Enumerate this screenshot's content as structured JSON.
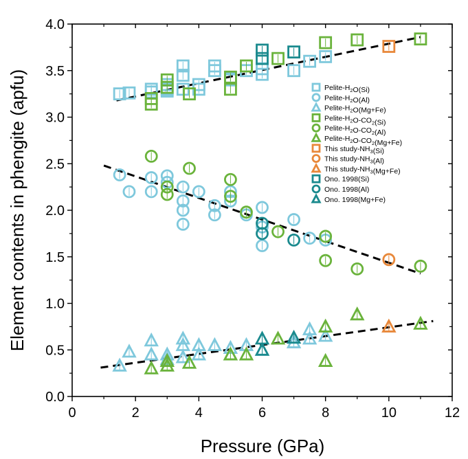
{
  "chart_data": {
    "type": "scatter",
    "xlabel": "Pressure (GPa)",
    "ylabel": "Element contents in phengite (apfu)",
    "xlim": [
      0,
      12
    ],
    "ylim": [
      0.0,
      4.0
    ],
    "x_ticks": [
      "0",
      "2",
      "4",
      "6",
      "8",
      "10",
      "12"
    ],
    "y_ticks": [
      "0.0",
      "0.5",
      "1.0",
      "1.5",
      "2.0",
      "2.5",
      "3.0",
      "3.5",
      "4.0"
    ],
    "colors": {
      "pelite_h2o": "#7ec8dc",
      "pelite_h2o_co2": "#6ab33b",
      "this_study": "#e8883a",
      "ono": "#1a8a8e",
      "trend": "#000000"
    },
    "legend": [
      {
        "base": "Pelite-H",
        "sub": "2",
        "tail": "O(Si)",
        "marker": "square",
        "color": "#7ec8dc"
      },
      {
        "base": "Pelite-H",
        "sub": "2",
        "tail": "O(Al)",
        "marker": "circle",
        "color": "#7ec8dc"
      },
      {
        "base": "Pelite-H",
        "sub": "2",
        "tail": "O(Mg+Fe)",
        "marker": "triangle",
        "color": "#7ec8dc"
      },
      {
        "base": "Pelite-H",
        "sub": "2",
        "tail": "O-CO",
        "sub2": "2",
        "tail2": "(Si)",
        "marker": "square",
        "color": "#6ab33b"
      },
      {
        "base": "Pelite-H",
        "sub": "2",
        "tail": "O-CO",
        "sub2": "2",
        "tail2": "(Al)",
        "marker": "circle",
        "color": "#6ab33b"
      },
      {
        "base": "Pelite-H",
        "sub": "2",
        "tail": "O-CO",
        "sub2": "2",
        "tail2": "(Mg+Fe)",
        "marker": "triangle",
        "color": "#6ab33b"
      },
      {
        "base": "This study-NH",
        "sub": "3",
        "tail": "(Si)",
        "marker": "square",
        "color": "#e8883a"
      },
      {
        "base": "This study-NH",
        "sub": "3",
        "tail": "(Al)",
        "marker": "circle",
        "color": "#e8883a"
      },
      {
        "base": "This study-NH",
        "sub": "3",
        "tail": "(Mg+Fe)",
        "marker": "triangle",
        "color": "#e8883a"
      },
      {
        "base": "Ono. 1998(Si)",
        "marker": "square",
        "color": "#1a8a8e"
      },
      {
        "base": "Ono. 1998(Al)",
        "marker": "circle",
        "color": "#1a8a8e"
      },
      {
        "base": "Ono. 1998(Mg+Fe)",
        "marker": "triangle",
        "color": "#1a8a8e"
      }
    ],
    "trend_lines": [
      {
        "name": "Si trend",
        "x": [
          1.4,
          11.0
        ],
        "y": [
          3.18,
          3.86
        ]
      },
      {
        "name": "Al trend",
        "x": [
          1.0,
          11.0
        ],
        "y": [
          2.48,
          1.32
        ]
      },
      {
        "name": "Mg+Fe trend",
        "x": [
          0.9,
          11.4
        ],
        "y": [
          0.31,
          0.81
        ]
      }
    ],
    "series": [
      {
        "name": "Pelite-H2O(Si)",
        "marker": "square",
        "color": "#7ec8dc",
        "x": [
          1.5,
          1.8,
          2.5,
          2.5,
          3.0,
          3.0,
          3.0,
          3.5,
          3.5,
          3.5,
          4.0,
          4.0,
          4.5,
          4.5,
          5.0,
          5.0,
          5.5,
          6.0,
          6.0,
          7.0,
          7.5,
          8.0
        ],
        "y": [
          3.25,
          3.26,
          3.27,
          3.3,
          3.3,
          3.35,
          3.28,
          3.55,
          3.45,
          3.3,
          3.35,
          3.3,
          3.5,
          3.55,
          3.42,
          3.4,
          3.5,
          3.52,
          3.46,
          3.5,
          3.6,
          3.65
        ]
      },
      {
        "name": "Pelite-H2O(Al)",
        "marker": "circle",
        "color": "#7ec8dc",
        "x": [
          1.5,
          1.8,
          2.5,
          2.5,
          3.0,
          3.0,
          3.5,
          3.5,
          3.5,
          3.5,
          4.0,
          4.5,
          4.5,
          5.0,
          5.0,
          5.5,
          6.0,
          6.0,
          6.0,
          7.0,
          7.5,
          8.0
        ],
        "y": [
          2.38,
          2.2,
          2.35,
          2.2,
          2.37,
          2.3,
          2.25,
          2.1,
          2.0,
          1.85,
          2.2,
          2.05,
          1.95,
          2.2,
          2.1,
          1.95,
          2.03,
          1.82,
          1.62,
          1.9,
          1.7,
          1.68
        ]
      },
      {
        "name": "Pelite-H2O(Mg+Fe)",
        "marker": "triangle",
        "color": "#7ec8dc",
        "x": [
          1.5,
          1.8,
          2.5,
          2.5,
          3.0,
          3.0,
          3.5,
          3.5,
          3.5,
          4.0,
          4.0,
          4.5,
          5.0,
          5.0,
          5.5,
          6.0,
          7.0,
          7.5,
          7.5,
          8.0
        ],
        "y": [
          0.33,
          0.48,
          0.6,
          0.45,
          0.45,
          0.4,
          0.62,
          0.55,
          0.42,
          0.45,
          0.55,
          0.55,
          0.45,
          0.52,
          0.55,
          0.5,
          0.58,
          0.72,
          0.62,
          0.65
        ]
      },
      {
        "name": "Pelite-H2O-CO2(Si)",
        "marker": "square",
        "color": "#6ab33b",
        "x": [
          2.5,
          2.5,
          3.0,
          3.0,
          3.7,
          5.0,
          5.0,
          5.5,
          6.5,
          8.0,
          9.0,
          11.0
        ],
        "y": [
          3.14,
          3.2,
          3.4,
          3.32,
          3.25,
          3.43,
          3.3,
          3.55,
          3.63,
          3.8,
          3.83,
          3.84
        ]
      },
      {
        "name": "Pelite-H2O-CO2(Al)",
        "marker": "circle",
        "color": "#6ab33b",
        "x": [
          2.5,
          3.0,
          3.0,
          3.7,
          5.0,
          5.0,
          5.5,
          6.5,
          8.0,
          8.0,
          9.0,
          11.0
        ],
        "y": [
          2.58,
          2.25,
          2.17,
          2.45,
          2.33,
          2.15,
          1.98,
          1.77,
          1.72,
          1.46,
          1.37,
          1.4
        ]
      },
      {
        "name": "Pelite-H2O-CO2(Mg+Fe)",
        "marker": "triangle",
        "color": "#6ab33b",
        "x": [
          2.5,
          3.0,
          3.0,
          3.7,
          5.0,
          5.5,
          6.5,
          8.0,
          8.0,
          9.0,
          11.0
        ],
        "y": [
          0.3,
          0.33,
          0.38,
          0.36,
          0.45,
          0.45,
          0.62,
          0.75,
          0.38,
          0.88,
          0.78
        ]
      },
      {
        "name": "This study-NH3(Si)",
        "marker": "square",
        "color": "#e8883a",
        "x": [
          10.0
        ],
        "y": [
          3.76
        ]
      },
      {
        "name": "This study-NH3(Al)",
        "marker": "circle",
        "color": "#e8883a",
        "x": [
          10.0
        ],
        "y": [
          1.47
        ]
      },
      {
        "name": "This study-NH3(Mg+Fe)",
        "marker": "triangle",
        "color": "#e8883a",
        "x": [
          10.0
        ],
        "y": [
          0.75
        ]
      },
      {
        "name": "Ono. 1998(Si)",
        "marker": "square",
        "color": "#1a8a8e",
        "x": [
          6.0,
          6.0,
          7.0
        ],
        "y": [
          3.72,
          3.63,
          3.7
        ]
      },
      {
        "name": "Ono. 1998(Al)",
        "marker": "circle",
        "color": "#1a8a8e",
        "x": [
          6.0,
          6.0,
          7.0
        ],
        "y": [
          1.86,
          1.75,
          1.68
        ]
      },
      {
        "name": "Ono. 1998(Mg+Fe)",
        "marker": "triangle",
        "color": "#1a8a8e",
        "x": [
          6.0,
          6.0,
          7.0
        ],
        "y": [
          0.62,
          0.5,
          0.63
        ]
      }
    ]
  }
}
